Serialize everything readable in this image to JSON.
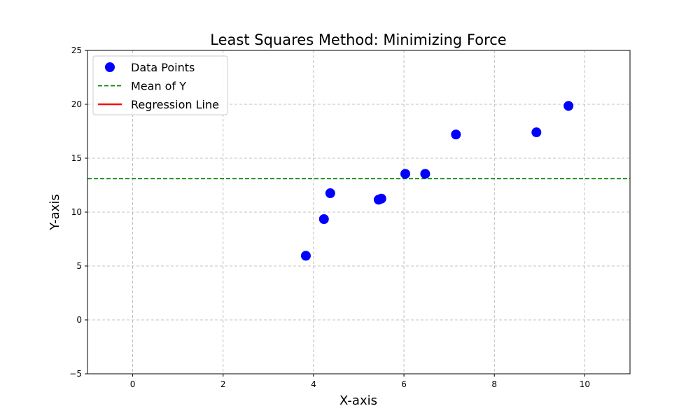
{
  "chart_data": {
    "type": "scatter",
    "title": "Least Squares Method: Minimizing Force",
    "xlabel": "X-axis",
    "ylabel": "Y-axis",
    "xlim": [
      -1,
      11
    ],
    "ylim": [
      -5,
      25
    ],
    "xticks": [
      0,
      2,
      4,
      6,
      8,
      10
    ],
    "yticks": [
      -5,
      0,
      5,
      10,
      15,
      20,
      25
    ],
    "xtick_labels": [
      "0",
      "2",
      "4",
      "6",
      "8",
      "10"
    ],
    "ytick_labels": [
      "−5",
      "0",
      "5",
      "10",
      "15",
      "20",
      "25"
    ],
    "grid": true,
    "legend_position": "top-left",
    "series": [
      {
        "name": "Data Points",
        "kind": "scatter",
        "color": "#0000ff",
        "x": [
          3.83,
          4.23,
          4.37,
          5.44,
          5.5,
          6.03,
          6.47,
          7.15,
          8.93,
          9.64
        ],
        "y": [
          5.95,
          9.35,
          11.75,
          11.15,
          11.25,
          13.55,
          13.55,
          17.2,
          17.4,
          19.85
        ]
      },
      {
        "name": "Mean of Y",
        "kind": "hline",
        "color": "#008000",
        "linestyle": "dashed",
        "y": 13.1
      },
      {
        "name": "Regression Line",
        "kind": "line",
        "color": "#ff0000",
        "linestyle": "solid",
        "x": [],
        "y": []
      }
    ]
  }
}
